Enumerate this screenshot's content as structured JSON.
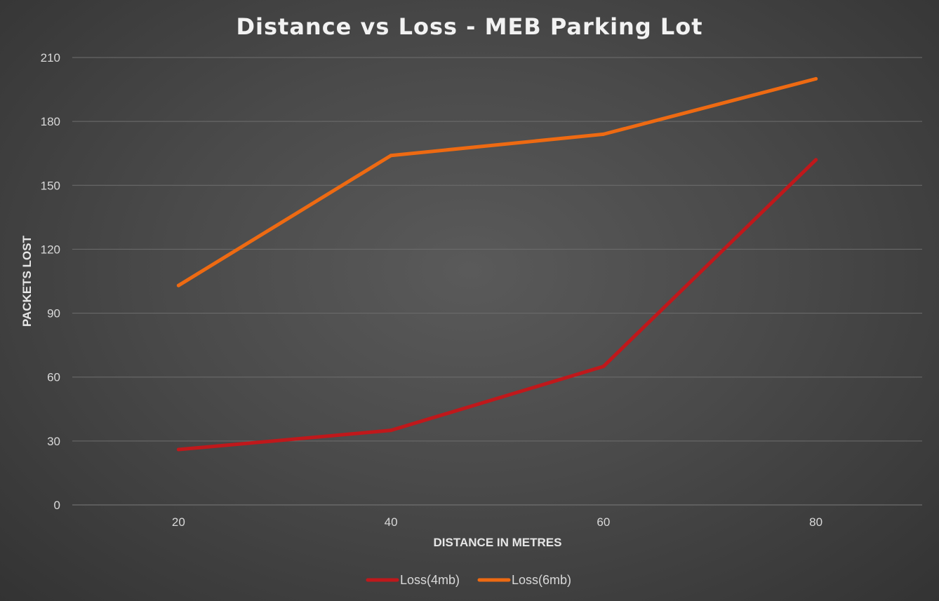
{
  "chart_data": {
    "type": "line",
    "title": "Distance vs Loss - MEB Parking Lot",
    "xlabel": "DISTANCE IN METRES",
    "ylabel": "PACKETS LOST",
    "categories": [
      "20",
      "40",
      "60",
      "80"
    ],
    "ylim": [
      0,
      210
    ],
    "yticks": [
      0,
      30,
      60,
      90,
      120,
      150,
      180,
      210
    ],
    "grid": true,
    "legend_position": "bottom",
    "series": [
      {
        "name": "Loss(4mb)",
        "color": "#c0181b",
        "values": [
          26,
          35,
          65,
          162
        ]
      },
      {
        "name": "Loss(6mb)",
        "color": "#ee6a12",
        "values": [
          103,
          164,
          174,
          200
        ]
      }
    ]
  }
}
